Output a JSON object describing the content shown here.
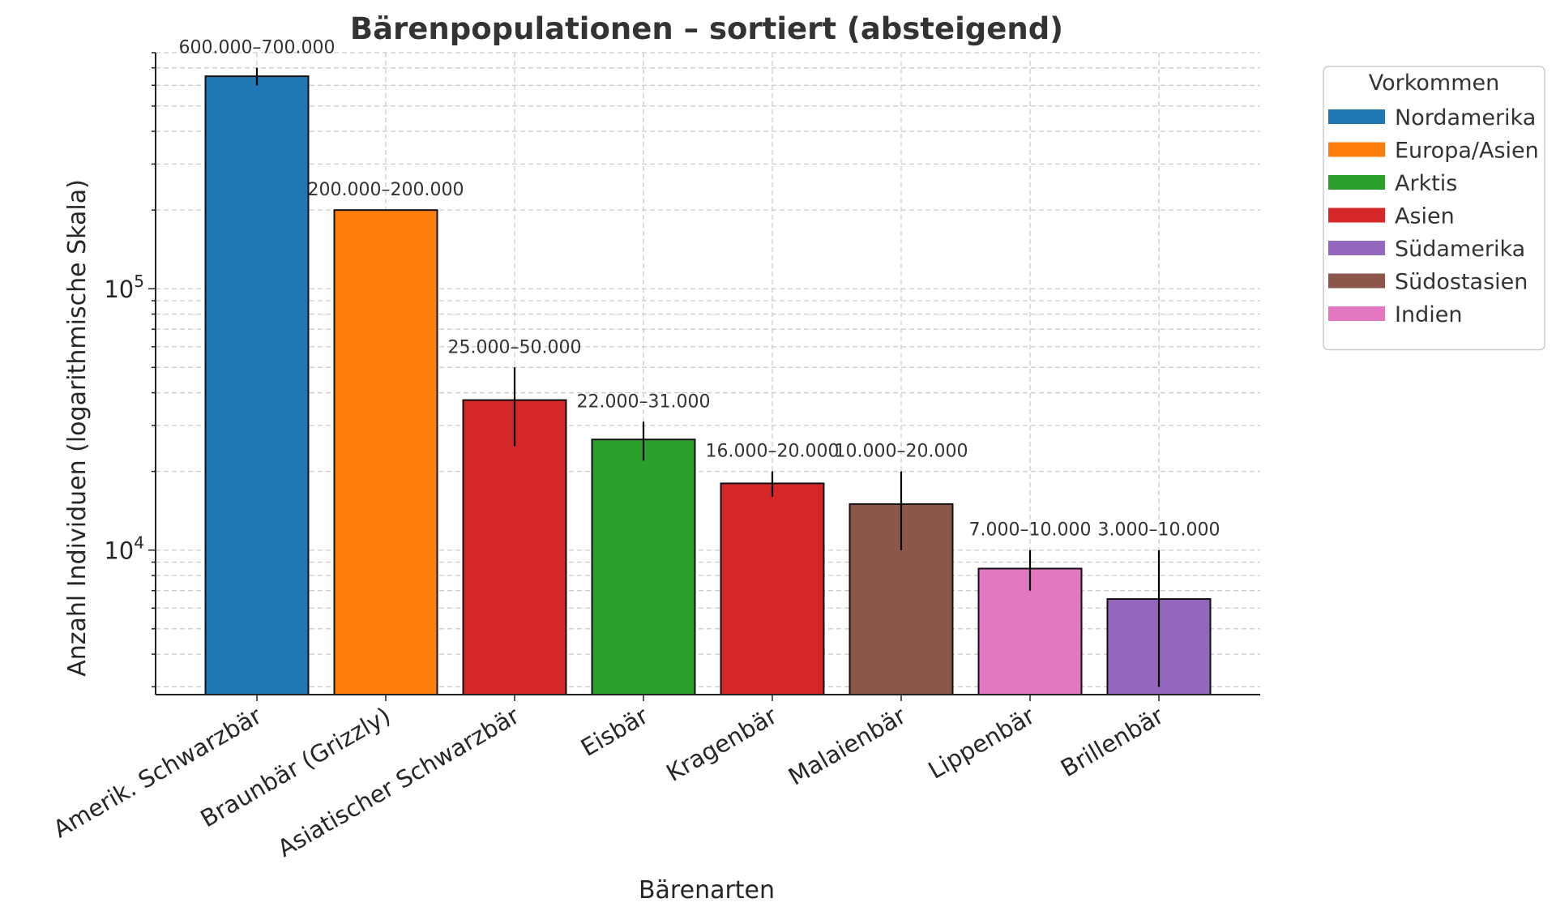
{
  "chart_data": {
    "type": "bar",
    "title": "Bärenpopulationen – sortiert (absteigend)",
    "xlabel": "Bärenarten",
    "ylabel": "Anzahl Individuen (logarithmische Skala)",
    "yscale": "log",
    "ylim": [
      2800,
      800000
    ],
    "yticks": [
      {
        "value": 10000,
        "base": "10",
        "exp": "4"
      },
      {
        "value": 100000,
        "base": "10",
        "exp": "5"
      }
    ],
    "grid": true,
    "legend_position": "outside-right",
    "legend": {
      "title": "Vorkommen",
      "entries": [
        {
          "label": "Nordamerika",
          "color": "#1f77b4"
        },
        {
          "label": "Europa/Asien",
          "color": "#ff7f0e"
        },
        {
          "label": "Arktis",
          "color": "#2ca02c"
        },
        {
          "label": "Asien",
          "color": "#d62728"
        },
        {
          "label": "Südamerika",
          "color": "#9467bd"
        },
        {
          "label": "Südostasien",
          "color": "#8c564b"
        },
        {
          "label": "Indien",
          "color": "#e377c2"
        }
      ]
    },
    "bars": [
      {
        "category": "Amerik. Schwarzbär",
        "value": 650000,
        "min": 600000,
        "max": 700000,
        "label": "600.000–700.000",
        "color": "#1f77b4"
      },
      {
        "category": "Braunbär (Grizzly)",
        "value": 200000,
        "min": 200000,
        "max": 200000,
        "label": "200.000–200.000",
        "color": "#ff7f0e"
      },
      {
        "category": "Asiatischer Schwarzbär",
        "value": 37500,
        "min": 25000,
        "max": 50000,
        "label": "25.000–50.000",
        "color": "#d62728"
      },
      {
        "category": "Eisbär",
        "value": 26500,
        "min": 22000,
        "max": 31000,
        "label": "22.000–31.000",
        "color": "#2ca02c"
      },
      {
        "category": "Kragenbär",
        "value": 18000,
        "min": 16000,
        "max": 20000,
        "label": "16.000–20.000",
        "color": "#d62728"
      },
      {
        "category": "Malaienbär",
        "value": 15000,
        "min": 10000,
        "max": 20000,
        "label": "10.000–20.000",
        "color": "#8c564b"
      },
      {
        "category": "Lippenbär",
        "value": 8500,
        "min": 7000,
        "max": 10000,
        "label": "7.000–10.000",
        "color": "#e377c2"
      },
      {
        "category": "Brillenbär",
        "value": 6500,
        "min": 3000,
        "max": 10000,
        "label": "3.000–10.000",
        "color": "#9467bd"
      }
    ]
  }
}
